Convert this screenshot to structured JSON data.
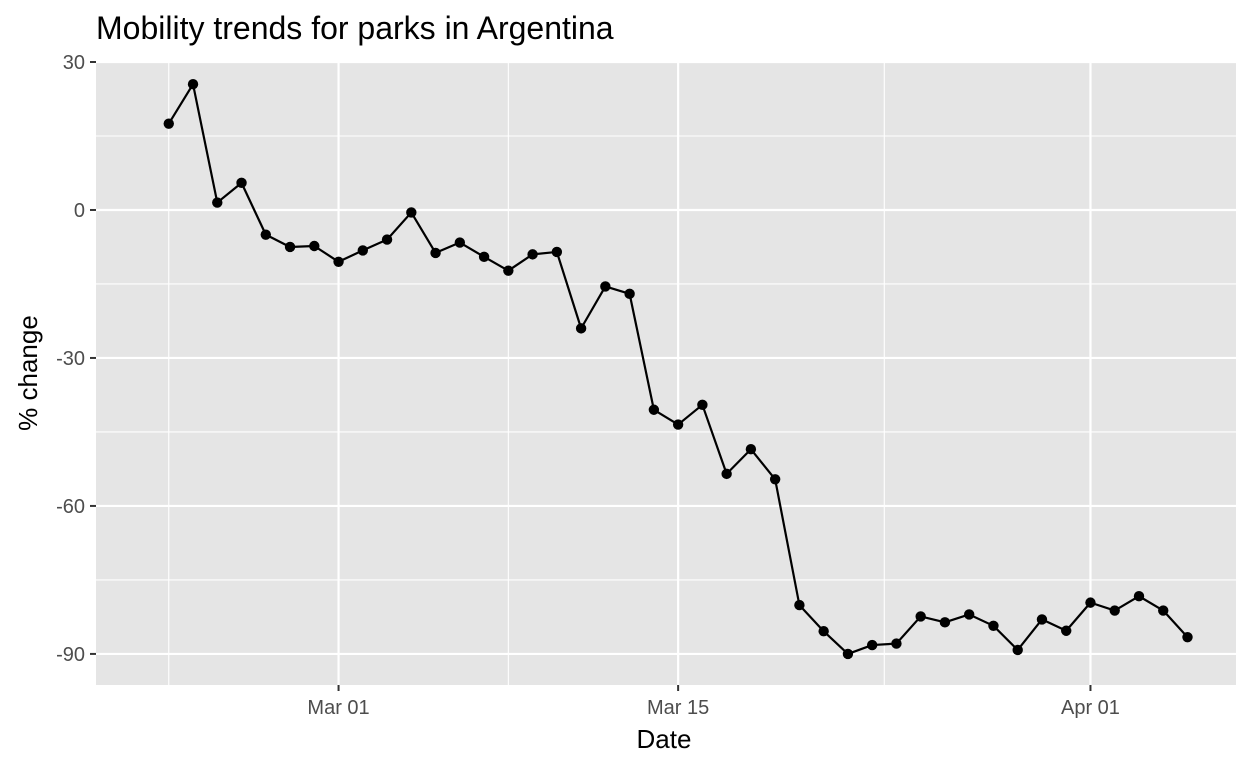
{
  "chart_data": {
    "type": "line",
    "title": "Mobility trends for parks in Argentina",
    "xlabel": "Date",
    "ylabel": "% change",
    "x_tick_labels": [
      "Mar 01",
      "Mar 15",
      "Apr 01"
    ],
    "x_tick_dates": [
      "2020-03-01",
      "2020-03-15",
      "2020-04-01"
    ],
    "y_ticks": [
      30,
      0,
      -30,
      -60,
      -90
    ],
    "y_tick_labels": [
      "30",
      "0",
      "-30",
      "-60",
      "-90"
    ],
    "ylim": [
      -96.3,
      30
    ],
    "xlim": [
      "2020-02-20",
      "2020-04-07"
    ],
    "grid": true,
    "series": [
      {
        "color": "#000000",
        "points": [
          {
            "x": "2020-02-23",
            "y": 17.5
          },
          {
            "x": "2020-02-24",
            "y": 25.5
          },
          {
            "x": "2020-02-25",
            "y": 1.5
          },
          {
            "x": "2020-02-26",
            "y": 5.5
          },
          {
            "x": "2020-02-27",
            "y": -5
          },
          {
            "x": "2020-02-28",
            "y": -7.5
          },
          {
            "x": "2020-02-29",
            "y": -7.3
          },
          {
            "x": "2020-03-01",
            "y": -10.5
          },
          {
            "x": "2020-03-02",
            "y": -8.2
          },
          {
            "x": "2020-03-03",
            "y": -6
          },
          {
            "x": "2020-03-04",
            "y": -0.5
          },
          {
            "x": "2020-03-05",
            "y": -8.7
          },
          {
            "x": "2020-03-06",
            "y": -6.6
          },
          {
            "x": "2020-03-07",
            "y": -9.5
          },
          {
            "x": "2020-03-08",
            "y": -12.3
          },
          {
            "x": "2020-03-09",
            "y": -9
          },
          {
            "x": "2020-03-10",
            "y": -8.5
          },
          {
            "x": "2020-03-11",
            "y": -24
          },
          {
            "x": "2020-03-12",
            "y": -15.5
          },
          {
            "x": "2020-03-13",
            "y": -17
          },
          {
            "x": "2020-03-14",
            "y": -40.5
          },
          {
            "x": "2020-03-15",
            "y": -43.5
          },
          {
            "x": "2020-03-16",
            "y": -39.5
          },
          {
            "x": "2020-03-17",
            "y": -53.5
          },
          {
            "x": "2020-03-18",
            "y": -48.5
          },
          {
            "x": "2020-03-19",
            "y": -54.6
          },
          {
            "x": "2020-03-20",
            "y": -80.1
          },
          {
            "x": "2020-03-21",
            "y": -85.4
          },
          {
            "x": "2020-03-22",
            "y": -90
          },
          {
            "x": "2020-03-23",
            "y": -88.2
          },
          {
            "x": "2020-03-24",
            "y": -87.9
          },
          {
            "x": "2020-03-25",
            "y": -82.4
          },
          {
            "x": "2020-03-26",
            "y": -83.6
          },
          {
            "x": "2020-03-27",
            "y": -82
          },
          {
            "x": "2020-03-28",
            "y": -84.3
          },
          {
            "x": "2020-03-29",
            "y": -89.2
          },
          {
            "x": "2020-03-30",
            "y": -83
          },
          {
            "x": "2020-03-31",
            "y": -85.3
          },
          {
            "x": "2020-04-01",
            "y": -79.6
          },
          {
            "x": "2020-04-02",
            "y": -81.2
          },
          {
            "x": "2020-04-03",
            "y": -78.3
          },
          {
            "x": "2020-04-04",
            "y": -81.2
          },
          {
            "x": "2020-04-05",
            "y": -86.6
          }
        ]
      }
    ],
    "colors": {
      "panel_background": "#e5e5e5",
      "gridline": "#ffffff",
      "line": "#000000",
      "point": "#000000",
      "tick_text": "#4d4d4d"
    }
  }
}
